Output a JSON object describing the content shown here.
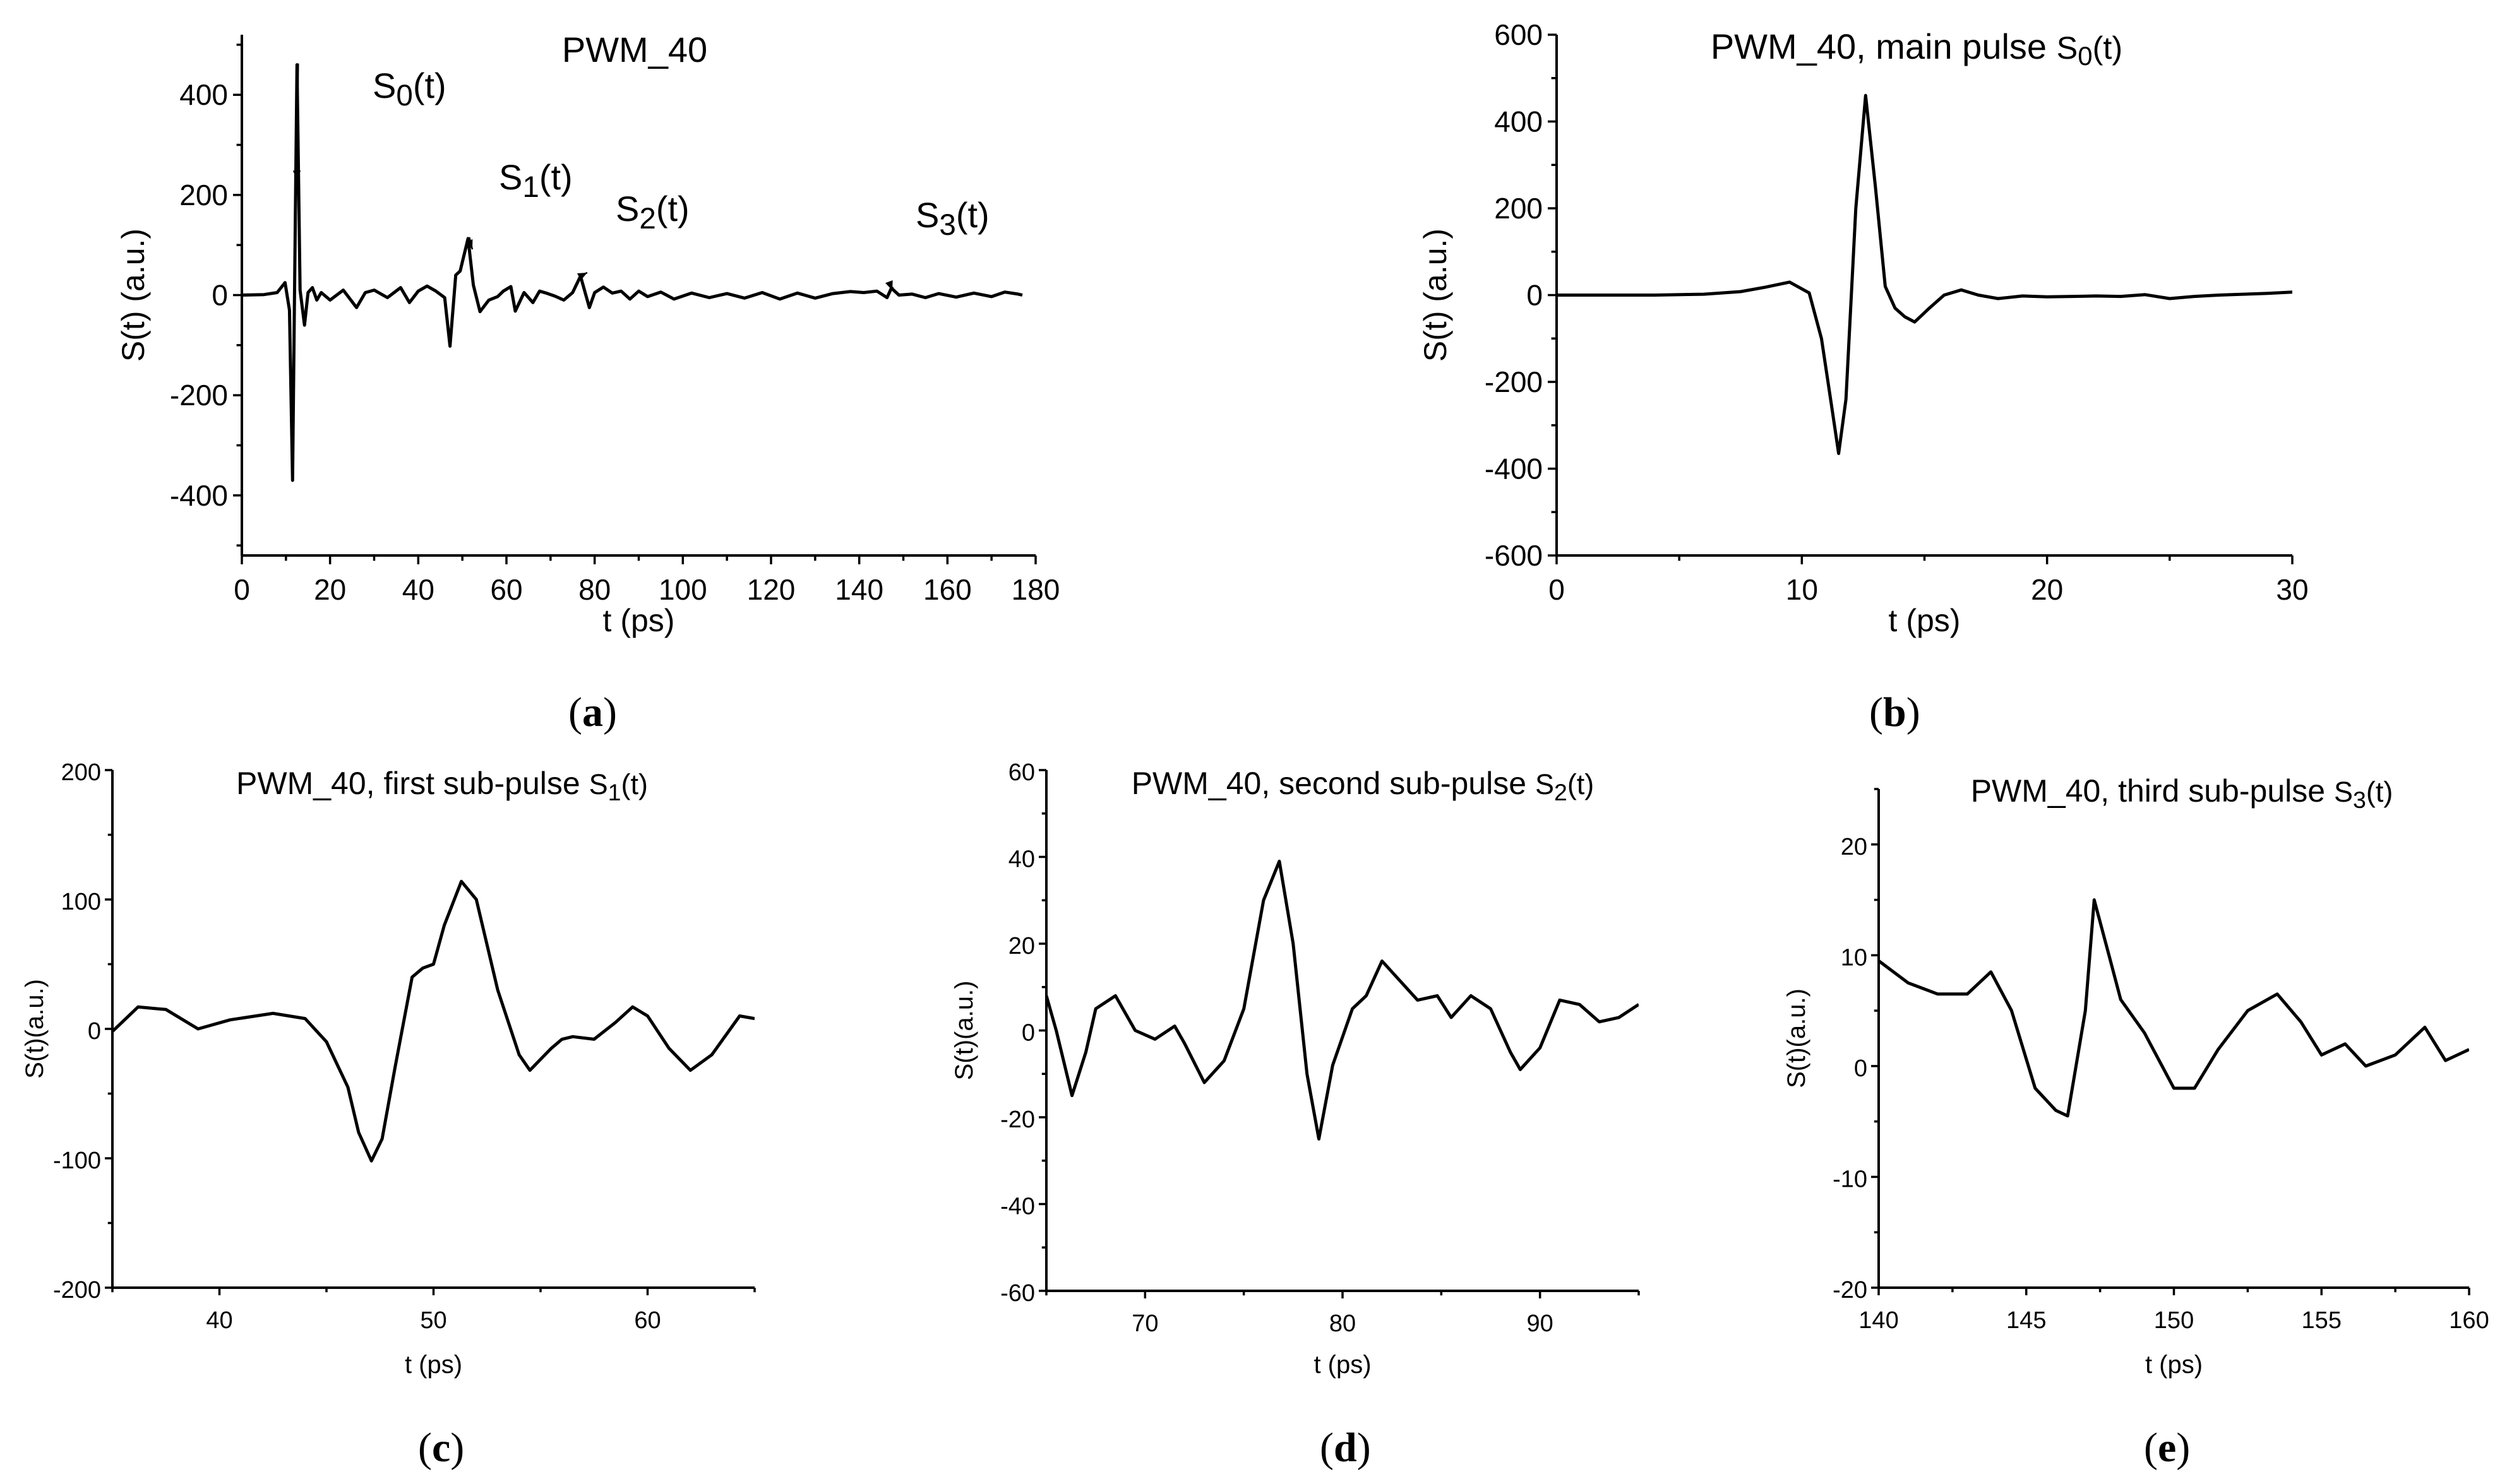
{
  "chart_data": [
    {
      "panel": "(a)",
      "panel_letter": "a",
      "type": "line",
      "title": "PWM_40",
      "xlabel": "t (ps)",
      "ylabel": "S(t) (a.u.)",
      "xlim": [
        0,
        180
      ],
      "ylim": [
        -520,
        520
      ],
      "xticks": [
        0,
        20,
        40,
        60,
        80,
        100,
        120,
        140,
        160,
        180
      ],
      "yticks": [
        -400,
        -200,
        0,
        200,
        400
      ],
      "annotations": [
        {
          "base": "S",
          "sub": "0",
          "suffix": "(t)",
          "x": 12.5,
          "y": 460
        },
        {
          "base": "S",
          "sub": "1",
          "suffix": "(t)",
          "x": 51.3,
          "y": 113
        },
        {
          "base": "S",
          "sub": "2",
          "suffix": "(t)",
          "x": 76.8,
          "y": 38
        },
        {
          "base": "S",
          "sub": "3",
          "suffix": "(t)",
          "x": 147.3,
          "y": 14
        }
      ],
      "series": [
        {
          "name": "S(t)",
          "x": [
            0,
            5,
            8,
            9.8,
            10.8,
            11.5,
            12,
            12.5,
            13.2,
            14.2,
            15,
            16,
            17,
            18,
            20,
            23,
            26,
            28,
            30,
            33,
            36,
            38,
            40,
            42,
            44,
            46,
            47.2,
            48.5,
            49.5,
            51.3,
            52.5,
            54,
            56,
            58,
            59.3,
            61,
            62,
            64,
            66,
            67.5,
            69,
            71,
            73,
            75,
            76.8,
            78.8,
            80,
            82,
            84,
            86,
            88,
            90,
            92,
            95,
            98,
            102,
            106,
            110,
            114,
            118,
            122,
            126,
            130,
            134,
            138,
            141,
            144,
            146.3,
            147.3,
            149,
            152,
            155,
            158,
            162,
            166,
            170,
            173,
            176,
            177
          ],
          "values": [
            0,
            1,
            5,
            25,
            -30,
            -370,
            50,
            460,
            10,
            -60,
            5,
            15,
            -10,
            5,
            -10,
            10,
            -25,
            5,
            10,
            -5,
            15,
            -15,
            8,
            18,
            8,
            -5,
            -102,
            40,
            48,
            113,
            20,
            -33,
            -10,
            -3,
            8,
            17,
            -32,
            5,
            -15,
            8,
            4,
            -2,
            -10,
            5,
            38,
            -25,
            5,
            16,
            4,
            8,
            -8,
            8,
            -3,
            6,
            -8,
            4,
            -5,
            3,
            -6,
            5,
            -8,
            4,
            -6,
            3,
            7,
            5,
            8,
            -5,
            14,
            0,
            2,
            -5,
            3,
            -4,
            4,
            -3,
            6,
            2,
            0
          ]
        }
      ]
    },
    {
      "panel": "(b)",
      "panel_letter": "b",
      "type": "line",
      "title": "PWM_40, main pulse",
      "title_sub": {
        "base": "S",
        "sub": "0",
        "suffix": "(t)"
      },
      "xlabel": "t (ps)",
      "ylabel": "S(t) (a.u.)",
      "xlim": [
        0,
        30
      ],
      "ylim": [
        -600,
        600
      ],
      "xticks": [
        0,
        10,
        20,
        30
      ],
      "yticks": [
        -600,
        -400,
        -200,
        0,
        200,
        400,
        600
      ],
      "series": [
        {
          "name": "S0(t)",
          "x": [
            0,
            4,
            6,
            7.5,
            8.5,
            9.5,
            10.3,
            10.8,
            11.2,
            11.5,
            11.8,
            12.2,
            12.6,
            13.0,
            13.4,
            13.8,
            14.2,
            14.6,
            15.2,
            15.8,
            16.5,
            17.2,
            18,
            19,
            20,
            21,
            22,
            23,
            24,
            25,
            26,
            27,
            28,
            29,
            30
          ],
          "values": [
            0,
            0,
            2,
            8,
            18,
            30,
            5,
            -100,
            -250,
            -365,
            -240,
            200,
            460,
            250,
            20,
            -30,
            -50,
            -62,
            -30,
            0,
            12,
            0,
            -8,
            -2,
            -4,
            -3,
            -2,
            -3,
            1,
            -8,
            -3,
            0,
            2,
            4,
            7
          ]
        }
      ]
    },
    {
      "panel": "(c)",
      "panel_letter": "c",
      "type": "line",
      "title": "PWM_40, first sub-pulse",
      "title_sub": {
        "base": "S",
        "sub": "1",
        "suffix": "(t)"
      },
      "xlabel": "t (ps)",
      "ylabel": "S(t)(a.u.)",
      "xlim": [
        35,
        65
      ],
      "ylim": [
        -200,
        200
      ],
      "xticks": [
        40,
        50,
        60
      ],
      "yticks": [
        -200,
        -100,
        0,
        100,
        200
      ],
      "series": [
        {
          "name": "S1(t)",
          "x": [
            35,
            36.2,
            37.5,
            39,
            40.5,
            42.5,
            44,
            45,
            46,
            46.5,
            47.1,
            47.6,
            48.2,
            49,
            49.5,
            50,
            50.5,
            51.3,
            52,
            53,
            54,
            54.5,
            55.5,
            56,
            56.5,
            57.5,
            58.5,
            59.3,
            60,
            61,
            62,
            63,
            64.3,
            65
          ],
          "values": [
            -2,
            17,
            15,
            0,
            7,
            12,
            8,
            -10,
            -45,
            -80,
            -102,
            -85,
            -30,
            40,
            47,
            50,
            80,
            114,
            100,
            30,
            -20,
            -32,
            -15,
            -8,
            -6,
            -8,
            5,
            17,
            10,
            -15,
            -32,
            -20,
            10,
            8
          ]
        }
      ]
    },
    {
      "panel": "(d)",
      "panel_letter": "d",
      "type": "line",
      "title": "PWM_40, second sub-pulse",
      "title_sub": {
        "base": "S",
        "sub": "2",
        "suffix": "(t)"
      },
      "xlabel": "t (ps)",
      "ylabel": "S(t)(a.u.)",
      "xlim": [
        65,
        95
      ],
      "ylim": [
        -60,
        60
      ],
      "xticks": [
        70,
        80,
        90
      ],
      "yticks": [
        -60,
        -40,
        -20,
        0,
        20,
        40,
        60
      ],
      "series": [
        {
          "name": "S2(t)",
          "x": [
            65,
            65.5,
            66.3,
            67,
            67.5,
            68.5,
            69.5,
            70.5,
            71.5,
            72,
            73,
            74,
            75,
            76,
            76.8,
            77.5,
            78.2,
            78.8,
            79.5,
            80.5,
            81.2,
            82,
            82.8,
            83.8,
            84.8,
            85.5,
            86.5,
            87.5,
            88.5,
            89,
            90,
            91,
            92,
            93,
            94,
            95
          ],
          "values": [
            8,
            0,
            -15,
            -5,
            5,
            8,
            0,
            -2,
            1,
            -3,
            -12,
            -7,
            5,
            30,
            39,
            20,
            -10,
            -25,
            -8,
            5,
            8,
            16,
            12,
            7,
            8,
            3,
            8,
            5,
            -5,
            -9,
            -4,
            7,
            6,
            2,
            3,
            6
          ]
        }
      ]
    },
    {
      "panel": "(e)",
      "panel_letter": "e",
      "type": "line",
      "title": "PWM_40, third sub-pulse",
      "title_sub": {
        "base": "S",
        "sub": "3",
        "suffix": "(t)"
      },
      "xlabel": "t (ps)",
      "ylabel": "S(t)(a.u.)",
      "xlim": [
        140,
        160
      ],
      "ylim": [
        -20,
        25
      ],
      "xticks": [
        140,
        145,
        150,
        155,
        160
      ],
      "yticks": [
        -20,
        -10,
        0,
        10,
        20
      ],
      "series": [
        {
          "name": "S3(t)",
          "x": [
            140,
            141,
            142,
            143,
            143.8,
            144.5,
            145.3,
            146,
            146.4,
            147,
            147.3,
            147.8,
            148.2,
            149,
            150,
            150.7,
            151.5,
            152.5,
            153.5,
            154.3,
            155,
            155.8,
            156.5,
            157.5,
            158.5,
            159.2,
            160
          ],
          "values": [
            9.5,
            7.5,
            6.5,
            6.5,
            8.5,
            5,
            -2,
            -4,
            -4.5,
            5,
            15,
            10,
            6,
            3,
            -2,
            -2,
            1.5,
            5,
            6.5,
            4,
            1,
            2,
            0,
            1,
            3.5,
            0.5,
            1.5
          ]
        }
      ]
    }
  ]
}
